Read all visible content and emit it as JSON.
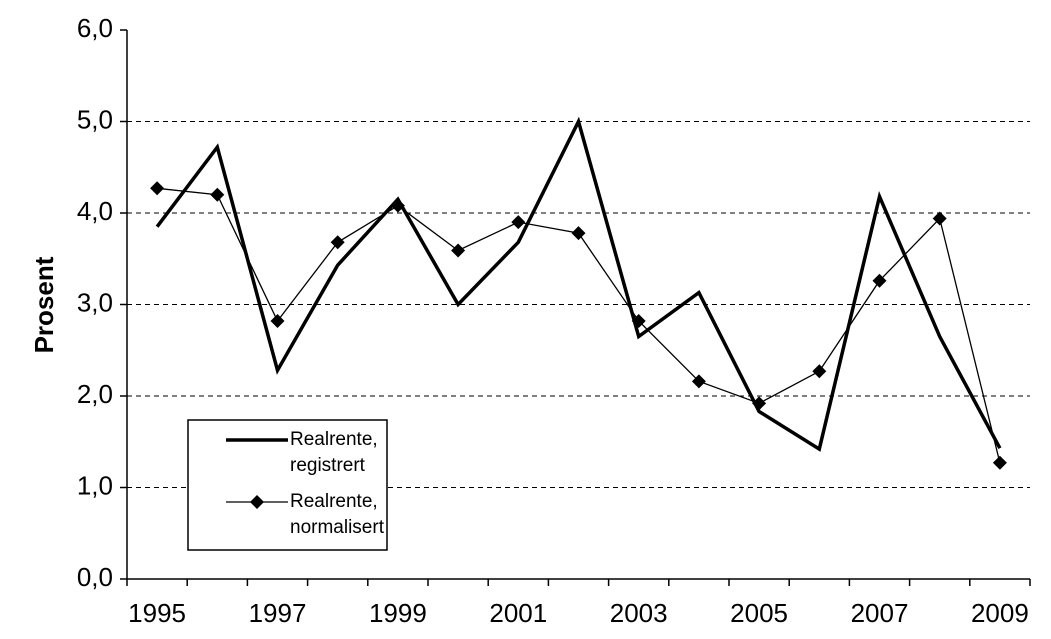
{
  "chart_data": {
    "type": "line",
    "y_label": "Prosent",
    "categories": [
      "1995",
      null,
      "1997",
      null,
      "1999",
      null,
      "2001",
      null,
      "2003",
      null,
      "2005",
      null,
      "2007",
      null,
      "2009"
    ],
    "series": [
      {
        "name": "Realrente, registrert",
        "color": "#000000",
        "line_width": 3.5,
        "marker": null,
        "values": [
          3.85,
          4.72,
          2.28,
          3.43,
          4.15,
          3.0,
          3.68,
          5.0,
          2.65,
          3.13,
          1.83,
          1.42,
          4.18,
          2.65,
          1.43
        ]
      },
      {
        "name": "Realrente, normalisert",
        "color": "#000000",
        "line_width": 1.3,
        "marker": "diamond",
        "values": [
          4.27,
          4.2,
          2.82,
          3.68,
          4.08,
          3.59,
          3.9,
          3.78,
          2.82,
          2.16,
          1.92,
          2.27,
          3.26,
          3.94,
          1.27
        ]
      }
    ],
    "ylim": [
      0,
      6
    ],
    "yticks": [
      {
        "value": 0,
        "label": "0,0"
      },
      {
        "value": 1,
        "label": "1,0"
      },
      {
        "value": 2,
        "label": "2,0"
      },
      {
        "value": 3,
        "label": "3,0"
      },
      {
        "value": 4,
        "label": "4,0"
      },
      {
        "value": 5,
        "label": "5,0"
      },
      {
        "value": 6,
        "label": "6,0"
      }
    ],
    "grid": true
  }
}
